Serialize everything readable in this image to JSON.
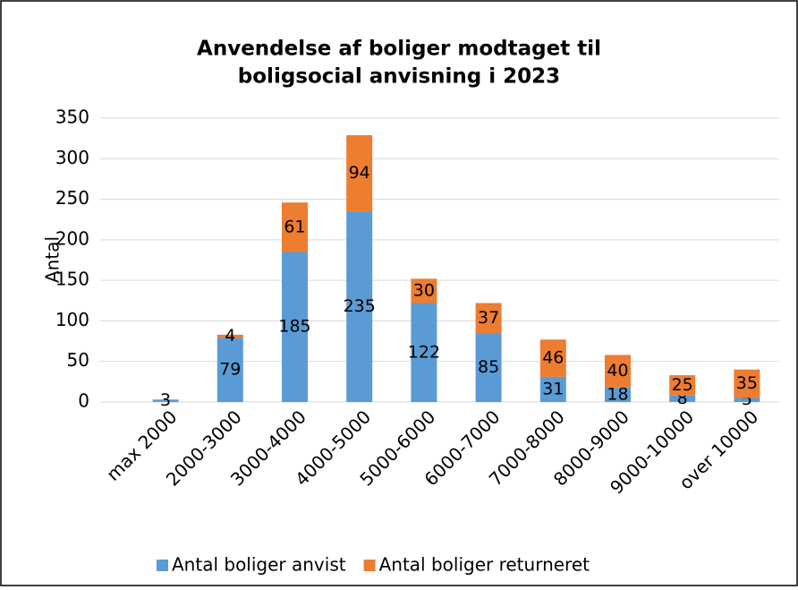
{
  "chart_data": {
    "type": "stacked-bar",
    "title": [
      "Anvendelse af boliger modtaget til",
      "boligsocial anvisning i 2023"
    ],
    "y_label": "Antal",
    "categories": [
      "max 2000",
      "2000-3000",
      "3000-4000",
      "4000-5000",
      "5000-6000",
      "6000-7000",
      "7000-8000",
      "8000-9000",
      "9000-10000",
      "over 10000"
    ],
    "series": [
      {
        "name": "Antal boliger anvist",
        "color": "#5b9bd5",
        "values": [
          3,
          79,
          185,
          235,
          122,
          85,
          31,
          18,
          8,
          5
        ]
      },
      {
        "name": "Antal boliger returneret",
        "color": "#ed7d31",
        "values": [
          null,
          4,
          61,
          94,
          30,
          37,
          46,
          40,
          25,
          35
        ]
      }
    ],
    "ylim": [
      0,
      350
    ],
    "yticks": [
      0,
      50,
      100,
      150,
      200,
      250,
      300,
      350
    ],
    "grid": true,
    "legend": "bottom"
  }
}
